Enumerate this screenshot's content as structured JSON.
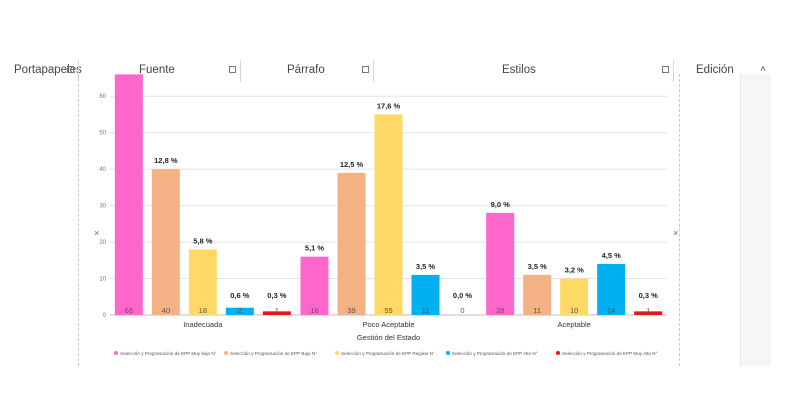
{
  "ribbon": {
    "groups": [
      {
        "id": "clipboard",
        "label": "Portapapeles"
      },
      {
        "id": "font",
        "label": "Fuente"
      },
      {
        "id": "paragraph",
        "label": "Párrafo"
      },
      {
        "id": "styles",
        "label": "Estilos"
      },
      {
        "id": "editing",
        "label": "Edición"
      }
    ],
    "collapse_symbol": "˄"
  },
  "resize_handle_symbol": "×",
  "chart_data": {
    "type": "bar",
    "title": "",
    "xlabel": "Gestión del Estado",
    "ylabel": "",
    "ylim": [
      0,
      65
    ],
    "yticks": [
      0,
      10,
      20,
      30,
      40,
      50,
      60
    ],
    "categories": [
      "Inadecuada",
      "Poco Aceptable",
      "Aceptable"
    ],
    "series": [
      {
        "name": "Selección y Programación de EPP Muy bajo N°",
        "color": "#ff66cc",
        "values": [
          66,
          16,
          28
        ],
        "value_labels": [
          "66",
          "16",
          "28"
        ],
        "pct_labels": [
          "",
          "5,1 %",
          "9,0 %"
        ]
      },
      {
        "name": "Selección y Programación de EPP Bajo N°",
        "color": "#f4b183",
        "values": [
          40,
          39,
          11
        ],
        "value_labels": [
          "40",
          "39",
          "11"
        ],
        "pct_labels": [
          "12,8 %",
          "12,5 %",
          "3,5 %"
        ]
      },
      {
        "name": "Selección y Programación de EPP Regular N°",
        "color": "#ffd966",
        "values": [
          18,
          55,
          10
        ],
        "value_labels": [
          "18",
          "55",
          "10"
        ],
        "pct_labels": [
          "5,8 %",
          "17,6 %",
          "3,2 %"
        ]
      },
      {
        "name": "Selección y Programación de EPP Alto N°",
        "color": "#00b0f0",
        "values": [
          2,
          11,
          14
        ],
        "value_labels": [
          "2",
          "11",
          "14"
        ],
        "pct_labels": [
          "0,6 %",
          "3,5 %",
          "4,5 %"
        ]
      },
      {
        "name": "Selección y Programación de EPP Muy Alto N°",
        "color": "#e8151b",
        "values": [
          1,
          0,
          1
        ],
        "value_labels": [
          "1",
          "0",
          "1"
        ],
        "pct_labels": [
          "0,3 %",
          "0,0 %",
          "0,3 %"
        ]
      }
    ],
    "legend": "bottom",
    "grid": true
  }
}
